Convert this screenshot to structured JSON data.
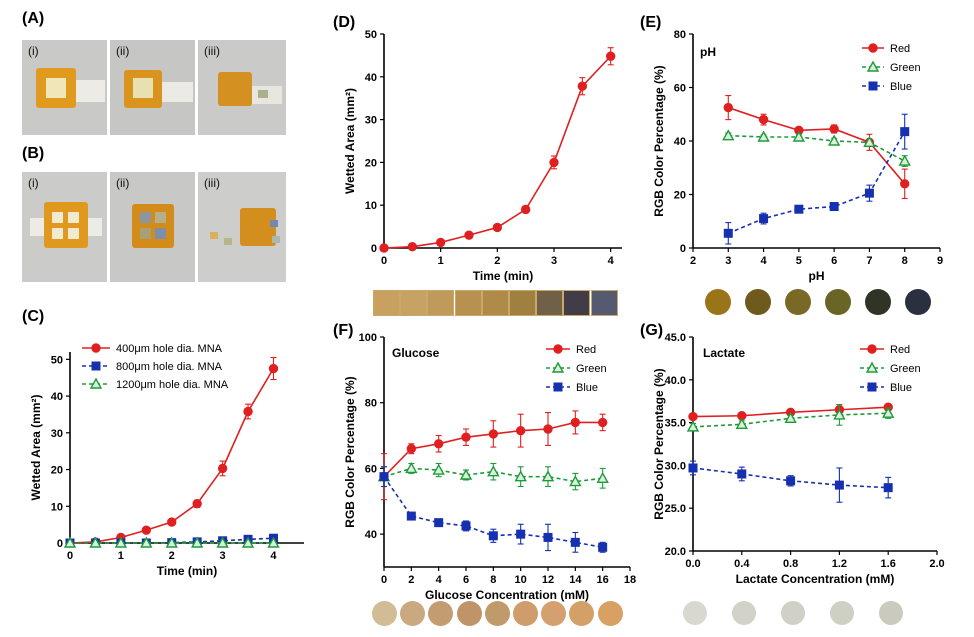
{
  "panel_labels": {
    "A": "(A)",
    "B": "(B)",
    "C": "(C)",
    "D": "(D)",
    "E": "(E)",
    "F": "(F)",
    "G": "(G)"
  },
  "photos": {
    "A": [
      "(i)",
      "(ii)",
      "(iii)"
    ],
    "B": [
      "(i)",
      "(ii)",
      "(iii)"
    ]
  },
  "colors": {
    "red": "#e02020",
    "green": "#1f9a3a",
    "blue": "#1730b0",
    "orange": "#e8951c"
  },
  "swatches": {
    "D": [
      "#c8a060",
      "#c6a265",
      "#c09a5a",
      "#b89050",
      "#b08a48",
      "#a08040",
      "#706048",
      "#403c48",
      "#555a70"
    ],
    "E": [
      "#9a7418",
      "#6e5a1c",
      "#7a6826",
      "#6a6426",
      "#2f3424",
      "#2a3040"
    ],
    "F": [
      "#d2bc96",
      "#caa880",
      "#c49c72",
      "#be9468",
      "#c19a6c",
      "#cf9c6c",
      "#d4a070",
      "#d3a068",
      "#d9a064"
    ],
    "G": [
      "#d8d8d0",
      "#d2d2c8",
      "#d0d0c6",
      "#cfd0c4",
      "#cacbbe"
    ]
  },
  "chart_data": [
    {
      "id": "C",
      "type": "line",
      "title": "",
      "xlabel": "Time (min)",
      "ylabel": "Wetted Area (mm²)",
      "xlim": [
        0,
        4.6
      ],
      "ylim": [
        0,
        52
      ],
      "xticks": [
        0,
        1,
        2,
        3,
        4
      ],
      "yticks": [
        0,
        10,
        20,
        30,
        40,
        50
      ],
      "legend": "top-left",
      "series": [
        {
          "name": "400μm hole dia. MNA",
          "color": "red",
          "marker": "circle",
          "dash": false,
          "x": [
            0,
            0.5,
            1,
            1.5,
            2,
            2.5,
            3,
            3.5,
            4
          ],
          "y": [
            0,
            0.3,
            1.5,
            3.5,
            5.7,
            10.7,
            20.3,
            35.8,
            47.5
          ],
          "err": [
            0.2,
            0.3,
            0.4,
            0.5,
            0.6,
            1.0,
            2.0,
            2.0,
            3.0
          ]
        },
        {
          "name": "800μm hole dia. MNA",
          "color": "blue",
          "marker": "square",
          "dash": true,
          "x": [
            0,
            0.5,
            1,
            1.5,
            2,
            2.5,
            3,
            3.5,
            4
          ],
          "y": [
            0,
            0,
            0,
            0,
            0.1,
            0.3,
            0.6,
            1.0,
            1.3
          ],
          "err": [
            0,
            0,
            0,
            0,
            0.2,
            0.3,
            0.4,
            0.6,
            0.8
          ]
        },
        {
          "name": "1200μm hole dia. MNA",
          "color": "green",
          "marker": "triangle",
          "dash": true,
          "x": [
            0,
            0.5,
            1,
            1.5,
            2,
            2.5,
            3,
            3.5,
            4
          ],
          "y": [
            0,
            0,
            0,
            0,
            0,
            0,
            0,
            0,
            0
          ],
          "err": [
            0,
            0,
            0,
            0,
            0,
            0,
            0,
            0,
            0
          ]
        }
      ]
    },
    {
      "id": "D",
      "type": "line",
      "title": "",
      "xlabel": "Time (min)",
      "ylabel": "Wetted Area (mm²)",
      "xlim": [
        0,
        4.2
      ],
      "ylim": [
        0,
        50
      ],
      "xticks": [
        0,
        1,
        2,
        3,
        4
      ],
      "yticks": [
        0,
        10,
        20,
        30,
        40,
        50
      ],
      "legend": "none",
      "series": [
        {
          "name": "",
          "color": "red",
          "marker": "circle",
          "dash": false,
          "x": [
            0,
            0.5,
            1,
            1.5,
            2,
            2.5,
            3,
            3.5,
            4
          ],
          "y": [
            0,
            0.3,
            1.3,
            3,
            4.8,
            9,
            20,
            37.8,
            44.8
          ],
          "err": [
            0.2,
            0.3,
            0.3,
            0.4,
            0.5,
            0.8,
            1.5,
            2.0,
            2.0
          ]
        }
      ]
    },
    {
      "id": "E",
      "type": "line",
      "title": "pH",
      "xlabel": "pH",
      "ylabel": "RGB Color Percentage (%)",
      "xlim": [
        2,
        9
      ],
      "ylim": [
        0,
        80
      ],
      "xticks": [
        2,
        3,
        4,
        5,
        6,
        7,
        8,
        9
      ],
      "yticks": [
        0,
        20,
        40,
        60,
        80
      ],
      "legend": "top-right",
      "series": [
        {
          "name": "Red",
          "color": "red",
          "marker": "circle",
          "dash": false,
          "x": [
            3,
            4,
            5,
            6,
            7,
            8
          ],
          "y": [
            52.5,
            48,
            44,
            44.5,
            39.5,
            24
          ],
          "err": [
            4.5,
            2.0,
            1.0,
            1.5,
            3.0,
            5.5
          ]
        },
        {
          "name": "Green",
          "color": "green",
          "marker": "triangle",
          "dash": true,
          "x": [
            3,
            4,
            5,
            6,
            7,
            8
          ],
          "y": [
            42,
            41.5,
            41.5,
            40,
            39.5,
            32.5
          ],
          "err": [
            1.0,
            0.8,
            0.8,
            1.0,
            1.0,
            2.0
          ]
        },
        {
          "name": "Blue",
          "color": "blue",
          "marker": "square",
          "dash": true,
          "x": [
            3,
            4,
            5,
            6,
            7,
            8
          ],
          "y": [
            5.5,
            11,
            14.5,
            15.5,
            20.5,
            43.5
          ],
          "err": [
            4.0,
            2.0,
            1.0,
            1.0,
            3.0,
            6.5
          ]
        }
      ]
    },
    {
      "id": "F",
      "type": "line",
      "title": "Glucose",
      "xlabel": "Glucose Concentration (mM)",
      "ylabel": "RGB Color Percentage (%)",
      "xlim": [
        0,
        18
      ],
      "ylim": [
        30,
        100
      ],
      "xticks": [
        0,
        2,
        4,
        6,
        8,
        10,
        12,
        14,
        16,
        18
      ],
      "yticks": [
        40,
        60,
        80,
        100
      ],
      "legend": "top-right",
      "series": [
        {
          "name": "Red",
          "color": "red",
          "marker": "circle",
          "dash": false,
          "x": [
            0,
            2,
            4,
            6,
            8,
            10,
            12,
            14,
            16
          ],
          "y": [
            57.5,
            66,
            67.5,
            69.5,
            70.5,
            71.5,
            72,
            74,
            74
          ],
          "err": [
            7,
            1.5,
            2.5,
            2.5,
            4,
            5,
            5,
            3.5,
            2.5
          ]
        },
        {
          "name": "Green",
          "color": "green",
          "marker": "triangle",
          "dash": true,
          "x": [
            0,
            2,
            4,
            6,
            8,
            10,
            12,
            14,
            16
          ],
          "y": [
            57.5,
            60,
            59.5,
            58,
            59,
            57.5,
            57.5,
            56,
            57
          ],
          "err": [
            3,
            1.5,
            2,
            1.5,
            2.5,
            3,
            3,
            2.5,
            3
          ]
        },
        {
          "name": "Blue",
          "color": "blue",
          "marker": "square",
          "dash": true,
          "x": [
            0,
            2,
            4,
            6,
            8,
            10,
            12,
            14,
            16
          ],
          "y": [
            57.5,
            45.5,
            43.5,
            42.5,
            39.5,
            40,
            39,
            37.5,
            36
          ],
          "err": [
            3,
            1,
            1,
            1.5,
            2,
            3,
            4,
            3,
            1.5
          ]
        }
      ]
    },
    {
      "id": "G",
      "type": "line",
      "title": "Lactate",
      "xlabel": "Lactate Concentration (mM)",
      "ylabel": "RGB Color Percentage (%)",
      "xlim": [
        0,
        2.0
      ],
      "ylim": [
        20,
        45
      ],
      "xticks": [
        0.0,
        0.4,
        0.8,
        1.2,
        1.6,
        2.0
      ],
      "yticks": [
        20,
        25,
        30,
        35,
        40,
        45
      ],
      "legend": "top-right",
      "series": [
        {
          "name": "Red",
          "color": "red",
          "marker": "circle",
          "dash": false,
          "x": [
            0,
            0.4,
            0.8,
            1.2,
            1.6
          ],
          "y": [
            35.7,
            35.8,
            36.2,
            36.5,
            36.8
          ],
          "err": [
            0.2,
            0.2,
            0.2,
            0.6,
            0.2
          ]
        },
        {
          "name": "Green",
          "color": "green",
          "marker": "triangle",
          "dash": true,
          "x": [
            0,
            0.4,
            0.8,
            1.2,
            1.6
          ],
          "y": [
            34.5,
            34.8,
            35.5,
            35.9,
            36.1
          ],
          "err": [
            0.4,
            0.4,
            0.4,
            1.2,
            0.6
          ]
        },
        {
          "name": "Blue",
          "color": "blue",
          "marker": "square",
          "dash": true,
          "x": [
            0,
            0.4,
            0.8,
            1.2,
            1.6
          ],
          "y": [
            29.7,
            29,
            28.2,
            27.7,
            27.4
          ],
          "err": [
            0.8,
            0.8,
            0.6,
            2.0,
            1.2
          ]
        }
      ]
    }
  ]
}
